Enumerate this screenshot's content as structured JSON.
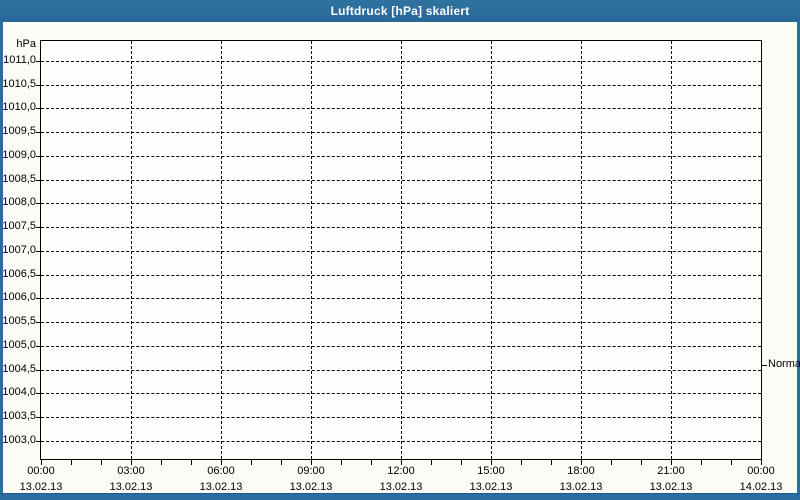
{
  "window": {
    "title": "Luftdruck [hPa] skaliert"
  },
  "colors": {
    "titlebar": "#2b6da1",
    "window_border": "#2b6da1",
    "content_background": "#fbfcf5",
    "plot_background": "#fefefc",
    "grid": "#000000",
    "text": "#000000",
    "title_text": "#ffffff"
  },
  "chart_data": {
    "type": "line",
    "title": "Luftdruck [hPa] skaliert",
    "ylabel": "hPa",
    "xlabel": "",
    "ylim": [
      1002.62,
      1011.42
    ],
    "xlim_hours": [
      0,
      24
    ],
    "grid": "dashed",
    "legend": "none",
    "series": [],
    "y_ticks": [
      {
        "value": 1011.0,
        "label": "1011,0"
      },
      {
        "value": 1010.5,
        "label": "1010,5"
      },
      {
        "value": 1010.0,
        "label": "1010,0"
      },
      {
        "value": 1009.5,
        "label": "1009,5"
      },
      {
        "value": 1009.0,
        "label": "1009,0"
      },
      {
        "value": 1008.5,
        "label": "1008,5"
      },
      {
        "value": 1008.0,
        "label": "1008,0"
      },
      {
        "value": 1007.5,
        "label": "1007,5"
      },
      {
        "value": 1007.0,
        "label": "1007,0"
      },
      {
        "value": 1006.5,
        "label": "1006,5"
      },
      {
        "value": 1006.0,
        "label": "1006,0"
      },
      {
        "value": 1005.5,
        "label": "1005,5"
      },
      {
        "value": 1005.0,
        "label": "1005,0"
      },
      {
        "value": 1004.5,
        "label": "1004,5"
      },
      {
        "value": 1004.0,
        "label": "1004,0"
      },
      {
        "value": 1003.5,
        "label": "1003,5"
      },
      {
        "value": 1003.0,
        "label": "1003,0"
      }
    ],
    "x_ticks": [
      {
        "hour": 0,
        "time": "00:00",
        "date": "13.02.13"
      },
      {
        "hour": 3,
        "time": "03:00",
        "date": "13.02.13"
      },
      {
        "hour": 6,
        "time": "06:00",
        "date": "13.02.13"
      },
      {
        "hour": 9,
        "time": "09:00",
        "date": "13.02.13"
      },
      {
        "hour": 12,
        "time": "12:00",
        "date": "13.02.13"
      },
      {
        "hour": 15,
        "time": "15:00",
        "date": "13.02.13"
      },
      {
        "hour": 18,
        "time": "18:00",
        "date": "13.02.13"
      },
      {
        "hour": 21,
        "time": "21:00",
        "date": "13.02.13"
      },
      {
        "hour": 24,
        "time": "00:00",
        "date": "14.02.13"
      }
    ],
    "x_minor_tick_every_hours": 1,
    "annotations": [
      {
        "label": "Normal",
        "value": 1004.6,
        "side": "right"
      }
    ]
  }
}
